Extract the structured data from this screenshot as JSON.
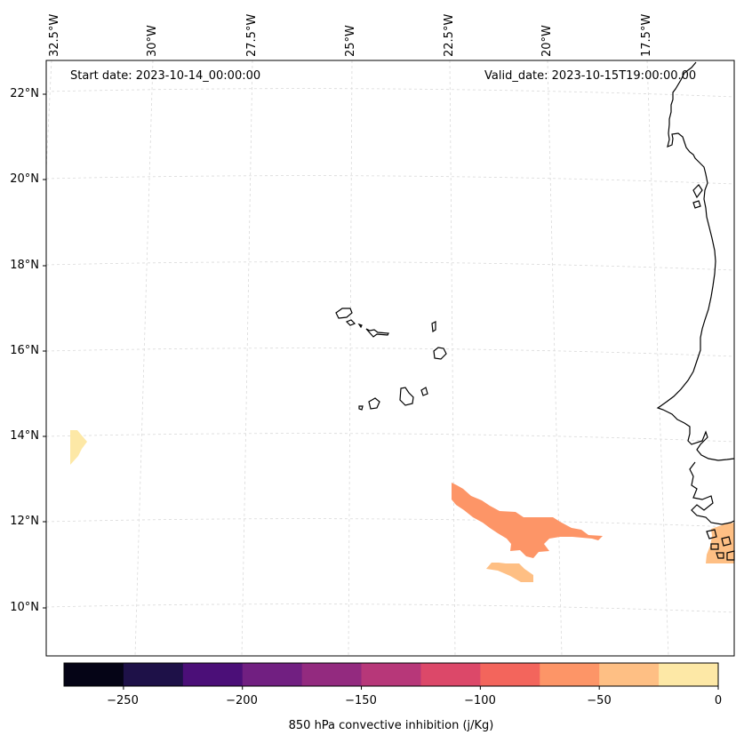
{
  "map": {
    "start_date_text": "Start date: 2023-10-14_00:00:00",
    "valid_date_text": "Valid_date: 2023-10-15T19:00:00.00",
    "longitude_labels": [
      "32.5°W",
      "30°W",
      "27.5°W",
      "25°W",
      "22.5°W",
      "20°W",
      "17.5°W"
    ],
    "latitude_labels": [
      "22°N",
      "20°N",
      "18°N",
      "16°N",
      "14°N",
      "12°N",
      "10°N"
    ],
    "field": "850 hPa convective inhibition (j/Kg)",
    "land_color": "#000000",
    "grid_color": "#d9d9d9"
  },
  "colorbar": {
    "label": "850 hPa convective inhibition (j/Kg)",
    "tick_labels": [
      "−250",
      "−200",
      "−150",
      "−100",
      "−50",
      "0"
    ],
    "bins": [
      {
        "from": -275,
        "to": -250,
        "color": "#050416"
      },
      {
        "from": -250,
        "to": -225,
        "color": "#1e1148"
      },
      {
        "from": -225,
        "to": -200,
        "color": "#4b0f78"
      },
      {
        "from": -200,
        "to": -175,
        "color": "#711f81"
      },
      {
        "from": -175,
        "to": -150,
        "color": "#932a7f"
      },
      {
        "from": -150,
        "to": -125,
        "color": "#b73779"
      },
      {
        "from": -125,
        "to": -100,
        "color": "#dc4869"
      },
      {
        "from": -100,
        "to": -75,
        "color": "#f3655c"
      },
      {
        "from": -75,
        "to": -50,
        "color": "#fd9567"
      },
      {
        "from": -50,
        "to": -25,
        "color": "#febf84"
      },
      {
        "from": -25,
        "to": 0,
        "color": "#fde8a6"
      }
    ]
  }
}
